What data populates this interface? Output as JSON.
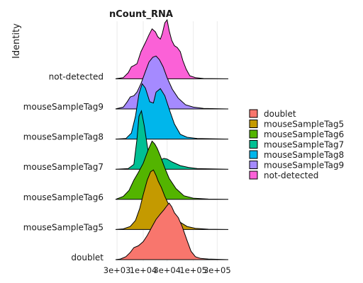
{
  "chart_data": {
    "type": "ridgeline",
    "title": "nCount_RNA",
    "xlabel": "",
    "ylabel": "Identity",
    "x_scale": "log10",
    "xlim": [
      2800,
      500000
    ],
    "x_ticks": [
      {
        "value": 3000,
        "label": "3e+03"
      },
      {
        "value": 10000,
        "label": "1e+04"
      },
      {
        "value": 30000,
        "label": "3e+04"
      },
      {
        "value": 100000,
        "label": "1e+05"
      },
      {
        "value": 300000,
        "label": "3e+05"
      }
    ],
    "grid": true,
    "legend_position": "right",
    "legend_title": "",
    "series": [
      {
        "name": "doublet",
        "color": "#F8766D",
        "density": [
          [
            2800,
            0
          ],
          [
            3500,
            0.01
          ],
          [
            4500,
            0.05
          ],
          [
            5500,
            0.12
          ],
          [
            6500,
            0.2
          ],
          [
            8000,
            0.23
          ],
          [
            10000,
            0.3
          ],
          [
            12000,
            0.4
          ],
          [
            15000,
            0.55
          ],
          [
            18000,
            0.67
          ],
          [
            22000,
            0.76
          ],
          [
            26000,
            0.83
          ],
          [
            30000,
            0.9
          ],
          [
            33000,
            0.94
          ],
          [
            37000,
            0.88
          ],
          [
            42000,
            0.78
          ],
          [
            50000,
            0.7
          ],
          [
            60000,
            0.55
          ],
          [
            75000,
            0.32
          ],
          [
            90000,
            0.14
          ],
          [
            110000,
            0.05
          ],
          [
            140000,
            0.02
          ],
          [
            200000,
            0.01
          ],
          [
            500000,
            0
          ]
        ]
      },
      {
        "name": "mouseSampleTag5",
        "color": "#C49A00",
        "density": [
          [
            2800,
            0
          ],
          [
            4000,
            0.01
          ],
          [
            5500,
            0.05
          ],
          [
            7000,
            0.15
          ],
          [
            8500,
            0.35
          ],
          [
            10000,
            0.58
          ],
          [
            12000,
            0.82
          ],
          [
            14000,
            0.96
          ],
          [
            16000,
            0.99
          ],
          [
            18000,
            0.9
          ],
          [
            20000,
            0.8
          ],
          [
            23000,
            0.7
          ],
          [
            27000,
            0.55
          ],
          [
            32000,
            0.42
          ],
          [
            40000,
            0.26
          ],
          [
            55000,
            0.12
          ],
          [
            75000,
            0.05
          ],
          [
            110000,
            0.02
          ],
          [
            200000,
            0.005
          ],
          [
            500000,
            0
          ]
        ]
      },
      {
        "name": "mouseSampleTag6",
        "color": "#53B400",
        "density": [
          [
            2800,
            0
          ],
          [
            4000,
            0.05
          ],
          [
            5200,
            0.15
          ],
          [
            6500,
            0.32
          ],
          [
            8000,
            0.45
          ],
          [
            10000,
            0.6
          ],
          [
            12500,
            0.82
          ],
          [
            15000,
            0.97
          ],
          [
            17000,
            0.92
          ],
          [
            19000,
            0.85
          ],
          [
            22000,
            0.72
          ],
          [
            27000,
            0.52
          ],
          [
            33000,
            0.35
          ],
          [
            45000,
            0.18
          ],
          [
            65000,
            0.06
          ],
          [
            100000,
            0.02
          ],
          [
            200000,
            0.005
          ],
          [
            500000,
            0
          ]
        ]
      },
      {
        "name": "mouseSampleTag7",
        "color": "#00C094",
        "density": [
          [
            2800,
            0
          ],
          [
            5000,
            0.01
          ],
          [
            6500,
            0.08
          ],
          [
            7500,
            0.5
          ],
          [
            8200,
            0.88
          ],
          [
            9200,
            0.97
          ],
          [
            10500,
            0.72
          ],
          [
            12500,
            0.3
          ],
          [
            16000,
            0.16
          ],
          [
            21000,
            0.15
          ],
          [
            26000,
            0.18
          ],
          [
            30000,
            0.17
          ],
          [
            38000,
            0.12
          ],
          [
            55000,
            0.06
          ],
          [
            80000,
            0.03
          ],
          [
            120000,
            0.01
          ],
          [
            500000,
            0
          ]
        ]
      },
      {
        "name": "mouseSampleTag8",
        "color": "#00B6EB",
        "density": [
          [
            2800,
            0
          ],
          [
            4500,
            0.01
          ],
          [
            5800,
            0.1
          ],
          [
            7000,
            0.38
          ],
          [
            8200,
            0.75
          ],
          [
            9500,
            0.92
          ],
          [
            11000,
            0.85
          ],
          [
            13500,
            0.62
          ],
          [
            16000,
            0.6
          ],
          [
            18000,
            0.78
          ],
          [
            22000,
            0.84
          ],
          [
            27000,
            0.72
          ],
          [
            33000,
            0.5
          ],
          [
            42000,
            0.25
          ],
          [
            55000,
            0.08
          ],
          [
            75000,
            0.03
          ],
          [
            120000,
            0.01
          ],
          [
            500000,
            0
          ]
        ]
      },
      {
        "name": "mouseSampleTag9",
        "color": "#A58AFF",
        "density": [
          [
            2800,
            0
          ],
          [
            4000,
            0.03
          ],
          [
            4800,
            0.12
          ],
          [
            5500,
            0.2
          ],
          [
            6500,
            0.22
          ],
          [
            7500,
            0.28
          ],
          [
            9000,
            0.42
          ],
          [
            11000,
            0.62
          ],
          [
            13000,
            0.78
          ],
          [
            15500,
            0.86
          ],
          [
            18000,
            0.88
          ],
          [
            21000,
            0.82
          ],
          [
            25000,
            0.7
          ],
          [
            30000,
            0.52
          ],
          [
            38000,
            0.33
          ],
          [
            50000,
            0.18
          ],
          [
            70000,
            0.07
          ],
          [
            100000,
            0.03
          ],
          [
            160000,
            0.01
          ],
          [
            500000,
            0
          ]
        ]
      },
      {
        "name": "not-detected",
        "color": "#FB61D7",
        "density": [
          [
            2800,
            0
          ],
          [
            4000,
            0.02
          ],
          [
            5000,
            0.1
          ],
          [
            5800,
            0.2
          ],
          [
            6500,
            0.22
          ],
          [
            7500,
            0.25
          ],
          [
            9000,
            0.45
          ],
          [
            11000,
            0.6
          ],
          [
            13000,
            0.73
          ],
          [
            15000,
            0.83
          ],
          [
            17500,
            0.78
          ],
          [
            19500,
            0.7
          ],
          [
            22000,
            0.66
          ],
          [
            24000,
            0.75
          ],
          [
            27000,
            0.93
          ],
          [
            30000,
            0.98
          ],
          [
            33000,
            0.8
          ],
          [
            37000,
            0.64
          ],
          [
            42000,
            0.55
          ],
          [
            48000,
            0.52
          ],
          [
            55000,
            0.45
          ],
          [
            62000,
            0.3
          ],
          [
            72000,
            0.16
          ],
          [
            85000,
            0.05
          ],
          [
            110000,
            0.02
          ],
          [
            160000,
            0.005
          ],
          [
            500000,
            0
          ]
        ]
      }
    ]
  }
}
